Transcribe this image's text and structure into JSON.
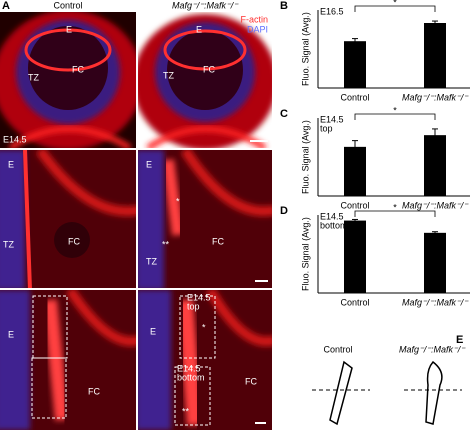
{
  "panel_a": {
    "label": "A",
    "columns": [
      "Control",
      "Mafg⁻/⁻:Mafk⁻/⁻"
    ],
    "legend": [
      "F-actin",
      "DAPI"
    ],
    "labels": [
      "E",
      "TZ",
      "FC",
      "E14.5",
      "E",
      "TZ",
      "FC",
      "E",
      "TZ",
      "FC",
      "E",
      "*",
      "**",
      "TZ",
      "FC",
      "E",
      "FC",
      "E",
      "*",
      "**",
      "FC"
    ],
    "boxes": [
      [
        "E14.5",
        "top"
      ],
      [
        "E14.5",
        "bottom"
      ]
    ]
  },
  "chart_data": [
    {
      "type": "bar",
      "panel": "B",
      "ylabel": "Fluo. Signal (Avg.)",
      "stage": [
        "E16.5"
      ],
      "categories": [
        "Control",
        "Mafg⁻/⁻:Mafk⁻/⁻"
      ],
      "values": [
        36,
        50
      ],
      "errors": [
        2,
        1.5
      ],
      "color": "#000000",
      "ylim": [
        0,
        60
      ],
      "annotation": "*"
    },
    {
      "type": "bar",
      "panel": "C",
      "ylabel": "Fluo. Signal (Avg.)",
      "stage": [
        "E14.5",
        "top"
      ],
      "categories": [
        "Control",
        "Mafg⁻/⁻:Mafk⁻/⁻"
      ],
      "values": [
        63,
        78
      ],
      "errors": [
        8,
        8
      ],
      "color": "#000000",
      "ylim": [
        0,
        100
      ],
      "annotation": "*"
    },
    {
      "type": "bar",
      "panel": "D",
      "ylabel": "Fluo. Signal (Avg.)",
      "stage": [
        "E14.5",
        "bottom"
      ],
      "categories": [
        "Control",
        "Mafg⁻/⁻:Mafk⁻/⁻"
      ],
      "values": [
        65,
        54
      ],
      "errors": [
        1,
        1
      ],
      "color": "#000000",
      "ylim": [
        0,
        70
      ],
      "annotation": "*"
    }
  ],
  "panel_e": {
    "label": "E",
    "columns": [
      "Control",
      "Mafg⁻/⁻:Mafk⁻/⁻"
    ]
  }
}
